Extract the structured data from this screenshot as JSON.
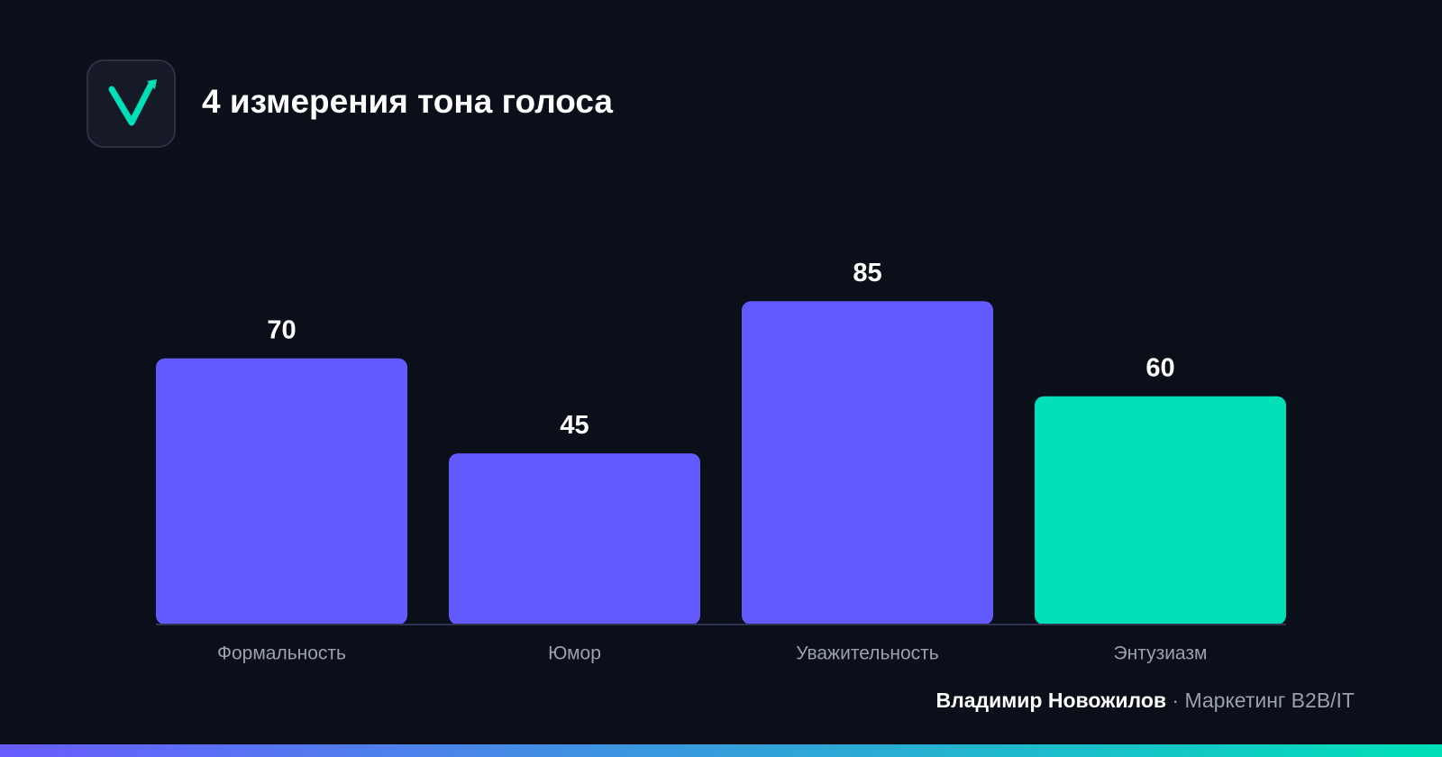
{
  "chart_data": {
    "type": "bar",
    "title": "4 измерения тона голоса",
    "categories": [
      "Формальность",
      "Юмор",
      "Уважительность",
      "Энтузиазм"
    ],
    "values": [
      70,
      45,
      85,
      60
    ],
    "colors": [
      "#635bff",
      "#635bff",
      "#635bff",
      "#00e0b8"
    ],
    "ylim": [
      0,
      100
    ]
  },
  "footer": {
    "author": "Владимир Новожилов",
    "tagline": "· Маркетинг B2B/IT"
  }
}
